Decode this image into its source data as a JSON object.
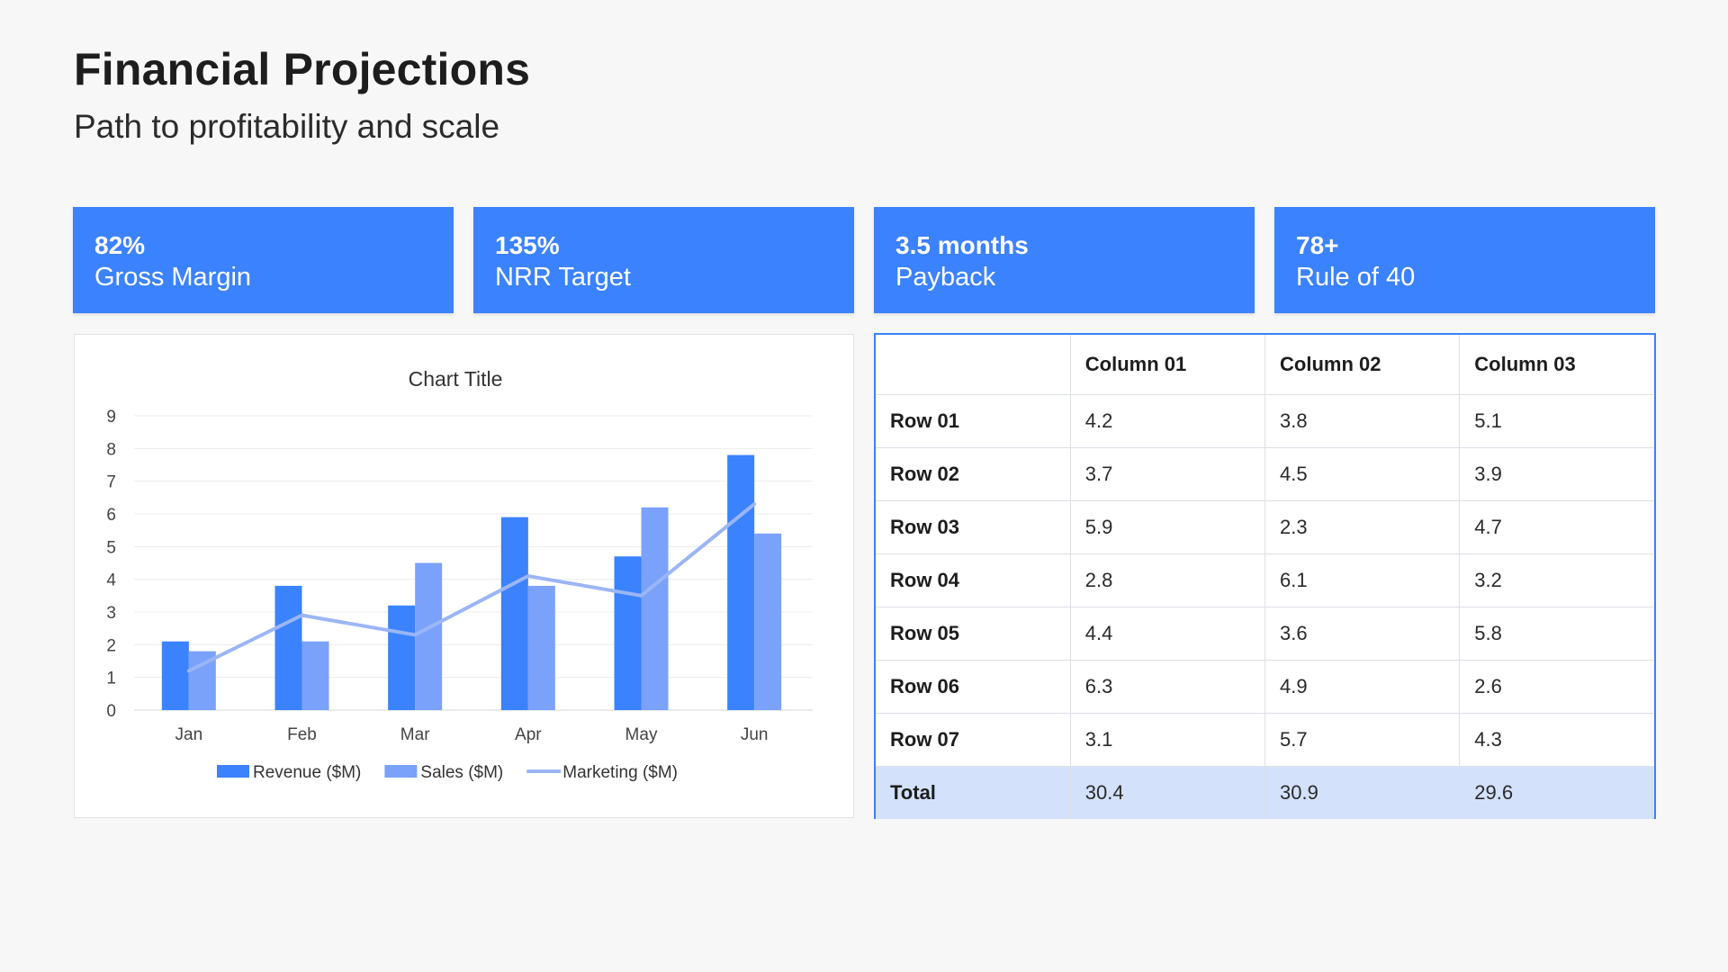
{
  "header": {
    "title": "Financial Projections",
    "subtitle": "Path to profitability and scale"
  },
  "kpis": [
    {
      "value": "82%",
      "label": "Gross Margin"
    },
    {
      "value": "135%",
      "label": "NRR Target"
    },
    {
      "value": "3.5 months",
      "label": "Payback"
    },
    {
      "value": "78+",
      "label": "Rule of 40"
    }
  ],
  "colors": {
    "accent": "#3b82fe",
    "sales": "#7aa2fb",
    "marketing": "#9bb5f5",
    "total_row": "#d3e1fb"
  },
  "chart_data": {
    "type": "bar",
    "title": "Chart Title",
    "categories": [
      "Jan",
      "Feb",
      "Mar",
      "Apr",
      "May",
      "Jun"
    ],
    "series": [
      {
        "name": "Revenue ($M)",
        "type": "bar",
        "values": [
          2.1,
          3.8,
          3.2,
          5.9,
          4.7,
          7.8
        ]
      },
      {
        "name": "Sales ($M)",
        "type": "bar",
        "values": [
          1.8,
          2.1,
          4.5,
          3.8,
          6.2,
          5.4
        ]
      },
      {
        "name": "Marketing ($M)",
        "type": "line",
        "values": [
          1.2,
          2.9,
          2.3,
          4.1,
          3.5,
          6.3
        ]
      }
    ],
    "ylim": [
      0,
      9
    ],
    "yticks": [
      0,
      1,
      2,
      3,
      4,
      5,
      6,
      7,
      8,
      9
    ],
    "grid": true,
    "legend": "bottom"
  },
  "table": {
    "columns": [
      "",
      "Column 01",
      "Column 02",
      "Column 03"
    ],
    "rows": [
      {
        "label": "Row 01",
        "values": [
          "4.2",
          "3.8",
          "5.1"
        ]
      },
      {
        "label": "Row 02",
        "values": [
          "3.7",
          "4.5",
          "3.9"
        ]
      },
      {
        "label": "Row 03",
        "values": [
          "5.9",
          "2.3",
          "4.7"
        ]
      },
      {
        "label": "Row 04",
        "values": [
          "2.8",
          "6.1",
          "3.2"
        ]
      },
      {
        "label": "Row 05",
        "values": [
          "4.4",
          "3.6",
          "5.8"
        ]
      },
      {
        "label": "Row 06",
        "values": [
          "6.3",
          "4.9",
          "2.6"
        ]
      },
      {
        "label": "Row 07",
        "values": [
          "3.1",
          "5.7",
          "4.3"
        ]
      }
    ],
    "total": {
      "label": "Total",
      "values": [
        "30.4",
        "30.9",
        "29.6"
      ]
    }
  }
}
